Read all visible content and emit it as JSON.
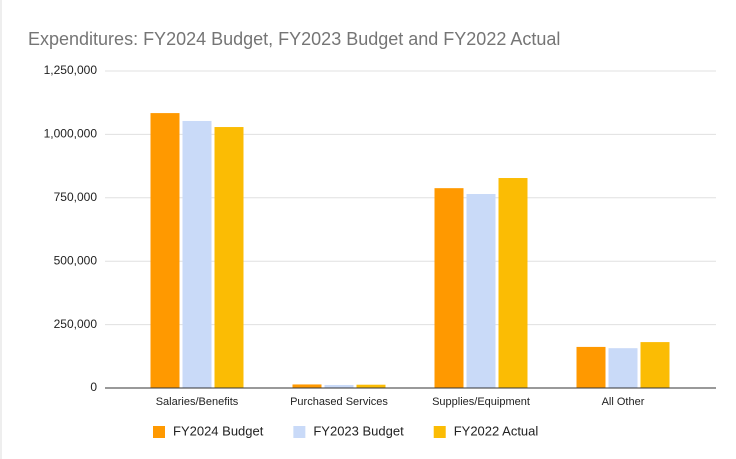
{
  "chart_data": {
    "type": "bar",
    "title": "Expenditures: FY2024 Budget, FY2023 Budget and FY2022 Actual",
    "categories": [
      "Salaries/Benefits",
      "Purchased Services",
      "Supplies/Equipment",
      "All Other"
    ],
    "series": [
      {
        "name": "FY2024 Budget",
        "color": "#ff9900",
        "values": [
          1084000,
          14000,
          788000,
          162000
        ]
      },
      {
        "name": "FY2023 Budget",
        "color": "#c9daf8",
        "values": [
          1053000,
          12000,
          765000,
          157000
        ]
      },
      {
        "name": "FY2022 Actual",
        "color": "#fbbc04",
        "values": [
          1029000,
          13000,
          828000,
          181000
        ]
      }
    ],
    "ylim": [
      0,
      1250000
    ],
    "yticks": [
      {
        "value": 0,
        "label": "0"
      },
      {
        "value": 250000,
        "label": "250,000"
      },
      {
        "value": 500000,
        "label": "500,000"
      },
      {
        "value": 750000,
        "label": "750,000"
      },
      {
        "value": 1000000,
        "label": "1,000,000"
      },
      {
        "value": 1250000,
        "label": "1,250,000"
      }
    ],
    "grid": true,
    "legend": "bottom"
  }
}
